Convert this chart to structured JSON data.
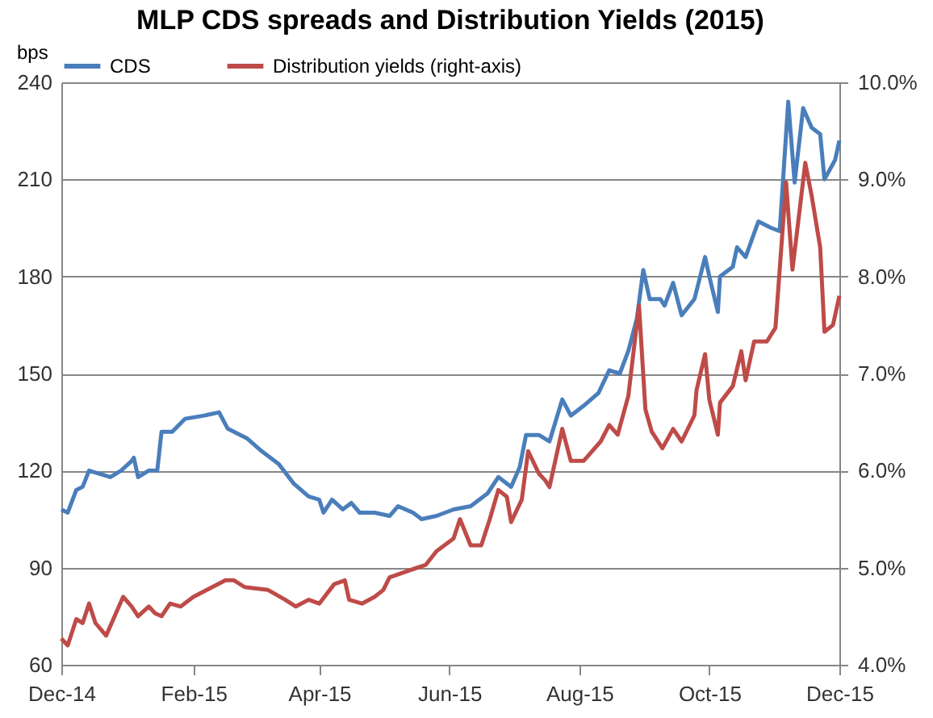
{
  "chart_data": {
    "type": "line",
    "title": "MLP CDS spreads and Distribution Yields (2015)",
    "ylabel": "bps",
    "xlim": [
      "2014-12-01",
      "2015-12-01"
    ],
    "xticks": [
      {
        "value": "2014-12-01",
        "label": "Dec-14"
      },
      {
        "value": "2015-02-01",
        "label": "Feb-15"
      },
      {
        "value": "2015-04-01",
        "label": "Apr-15"
      },
      {
        "value": "2015-06-01",
        "label": "Jun-15"
      },
      {
        "value": "2015-08-01",
        "label": "Aug-15"
      },
      {
        "value": "2015-10-01",
        "label": "Oct-15"
      },
      {
        "value": "2015-12-01",
        "label": "Dec-15"
      }
    ],
    "ylim": [
      60,
      240
    ],
    "yticks": [
      60,
      90,
      120,
      150,
      180,
      210,
      240
    ],
    "y2lim": [
      4,
      10
    ],
    "y2ticks": [
      {
        "value": 4,
        "label": "4.0%"
      },
      {
        "value": 5,
        "label": "5.0%"
      },
      {
        "value": 6,
        "label": "6.0%"
      },
      {
        "value": 7,
        "label": "7.0%"
      },
      {
        "value": 8,
        "label": "8.0%"
      },
      {
        "value": 9,
        "label": "9.0%"
      },
      {
        "value": 10,
        "label": "10.0%"
      }
    ],
    "grid": "y",
    "legend": "top",
    "marker": "none",
    "line_style": "solid",
    "series": [
      {
        "name": "CDS",
        "color": "#4a7ebb",
        "x": [
          "2014-12-01",
          "2014-12-04",
          "2014-12-08",
          "2014-12-11",
          "2014-12-14",
          "2014-12-19",
          "2014-12-24",
          "2014-12-29",
          "2015-01-03",
          "2015-01-04",
          "2015-01-06",
          "2015-01-11",
          "2015-01-15",
          "2015-01-17",
          "2015-01-22",
          "2015-01-28",
          "2015-02-06",
          "2015-02-13",
          "2015-02-17",
          "2015-02-26",
          "2015-03-05",
          "2015-03-13",
          "2015-03-20",
          "2015-03-27",
          "2015-04-01",
          "2015-04-03",
          "2015-04-07",
          "2015-04-12",
          "2015-04-16",
          "2015-04-20",
          "2015-04-27",
          "2015-05-04",
          "2015-05-08",
          "2015-05-15",
          "2015-05-19",
          "2015-05-26",
          "2015-06-03",
          "2015-06-11",
          "2015-06-19",
          "2015-06-24",
          "2015-06-30",
          "2015-07-04",
          "2015-07-07",
          "2015-07-13",
          "2015-07-18",
          "2015-07-24",
          "2015-07-28",
          "2015-08-03",
          "2015-08-10",
          "2015-08-15",
          "2015-08-20",
          "2015-08-24",
          "2015-08-28",
          "2015-08-31",
          "2015-09-03",
          "2015-09-08",
          "2015-09-10",
          "2015-09-14",
          "2015-09-18",
          "2015-09-24",
          "2015-09-29",
          "2015-10-01",
          "2015-10-05",
          "2015-10-06",
          "2015-10-12",
          "2015-10-14",
          "2015-10-18",
          "2015-10-24",
          "2015-10-30",
          "2015-11-03",
          "2015-11-07",
          "2015-11-10",
          "2015-11-14",
          "2015-11-18",
          "2015-11-22",
          "2015-11-24",
          "2015-11-29",
          "2015-12-01"
        ],
        "values": [
          108,
          107,
          114,
          115,
          120,
          119,
          118,
          120,
          123,
          124,
          118,
          120,
          120,
          132,
          132,
          136,
          137,
          138,
          133,
          130,
          126,
          122,
          116,
          112,
          111,
          107,
          111,
          108,
          110,
          107,
          107,
          106,
          109,
          107,
          105,
          106,
          108,
          109,
          113,
          118,
          115,
          121,
          131,
          131,
          129,
          142,
          137,
          140,
          144,
          151,
          150,
          157,
          167,
          182,
          173,
          173,
          171,
          178,
          168,
          173,
          186,
          180,
          169,
          180,
          183,
          189,
          186,
          197,
          195,
          194,
          234,
          209,
          232,
          226,
          224,
          210,
          216,
          222
        ]
      },
      {
        "name": "Distribution yields (right-axis)",
        "color": "#be4b48",
        "axis": "y2",
        "x": [
          "2014-12-01",
          "2014-12-04",
          "2014-12-08",
          "2014-12-11",
          "2014-12-14",
          "2014-12-17",
          "2014-12-22",
          "2014-12-30",
          "2015-01-03",
          "2015-01-06",
          "2015-01-11",
          "2015-01-14",
          "2015-01-17",
          "2015-01-21",
          "2015-01-26",
          "2015-02-01",
          "2015-02-16",
          "2015-02-20",
          "2015-02-25",
          "2015-03-08",
          "2015-03-16",
          "2015-03-21",
          "2015-03-27",
          "2015-04-01",
          "2015-04-08",
          "2015-04-13",
          "2015-04-15",
          "2015-04-21",
          "2015-04-27",
          "2015-05-01",
          "2015-05-04",
          "2015-05-13",
          "2015-05-21",
          "2015-05-26",
          "2015-06-03",
          "2015-06-06",
          "2015-06-11",
          "2015-06-16",
          "2015-06-20",
          "2015-06-24",
          "2015-06-28",
          "2015-06-30",
          "2015-07-05",
          "2015-07-08",
          "2015-07-13",
          "2015-07-16",
          "2015-07-18",
          "2015-07-24",
          "2015-07-28",
          "2015-08-03",
          "2015-08-11",
          "2015-08-15",
          "2015-08-19",
          "2015-08-24",
          "2015-08-29",
          "2015-09-01",
          "2015-09-04",
          "2015-09-09",
          "2015-09-14",
          "2015-09-18",
          "2015-09-24",
          "2015-09-25",
          "2015-09-29",
          "2015-10-01",
          "2015-10-05",
          "2015-10-06",
          "2015-10-12",
          "2015-10-16",
          "2015-10-18",
          "2015-10-22",
          "2015-10-28",
          "2015-11-01",
          "2015-11-06",
          "2015-11-09",
          "2015-11-15",
          "2015-11-18",
          "2015-11-22",
          "2015-11-24",
          "2015-11-28",
          "2015-12-01"
        ],
        "values": [
          4.27,
          4.2,
          4.47,
          4.43,
          4.63,
          4.43,
          4.3,
          4.7,
          4.6,
          4.5,
          4.6,
          4.53,
          4.5,
          4.63,
          4.6,
          4.7,
          4.87,
          4.87,
          4.8,
          4.77,
          4.67,
          4.6,
          4.67,
          4.63,
          4.83,
          4.87,
          4.67,
          4.63,
          4.7,
          4.77,
          4.9,
          4.97,
          5.03,
          5.17,
          5.3,
          5.5,
          5.23,
          5.23,
          5.5,
          5.8,
          5.73,
          5.47,
          5.7,
          6.2,
          5.97,
          5.9,
          5.83,
          6.43,
          6.1,
          6.1,
          6.3,
          6.47,
          6.37,
          6.77,
          7.7,
          6.63,
          6.4,
          6.23,
          6.43,
          6.3,
          6.57,
          6.83,
          7.2,
          6.73,
          6.37,
          6.7,
          6.87,
          7.23,
          6.93,
          7.33,
          7.33,
          7.47,
          8.97,
          8.07,
          9.17,
          8.83,
          8.3,
          7.43,
          7.5,
          7.8
        ]
      }
    ]
  }
}
